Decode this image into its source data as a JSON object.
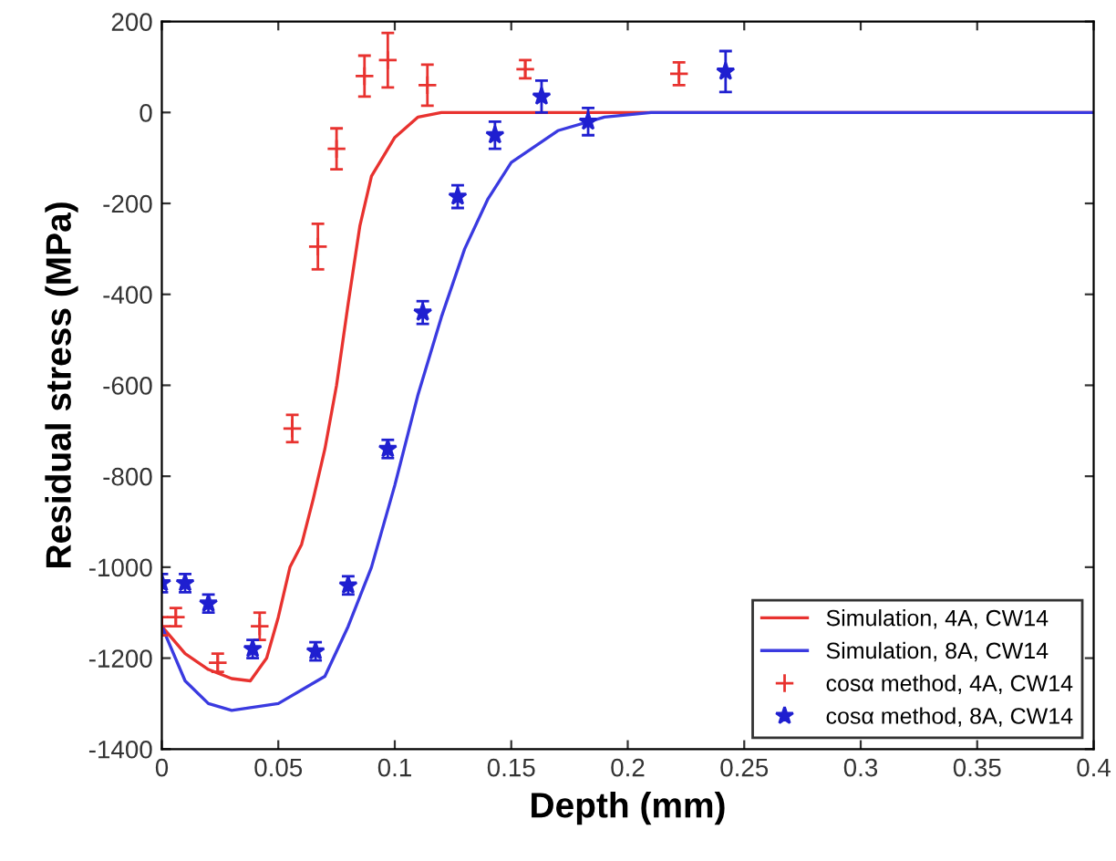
{
  "chart_data": {
    "type": "line",
    "xlabel": "Depth (mm)",
    "ylabel": "Residual stress (MPa)",
    "xlim": [
      0,
      0.4
    ],
    "xticks": [
      0,
      0.05,
      0.1,
      0.15,
      0.2,
      0.25,
      0.3,
      0.35,
      0.4
    ],
    "ylim": [
      -1400,
      200
    ],
    "yticks": [
      -1400,
      -1200,
      -1000,
      -800,
      -600,
      -400,
      -200,
      0,
      200
    ],
    "grid": false,
    "legend": "bottom right",
    "series": [
      {
        "name": "Simulation, 4A, CW14",
        "color": "#e8322f",
        "x": [
          0,
          0.01,
          0.02,
          0.03,
          0.038,
          0.045,
          0.05,
          0.055,
          0.06,
          0.065,
          0.07,
          0.075,
          0.08,
          0.085,
          0.09,
          0.1,
          0.11,
          0.12,
          0.4
        ],
        "values": [
          -1130,
          -1190,
          -1225,
          -1245,
          -1250,
          -1200,
          -1110,
          -1000,
          -950,
          -850,
          -740,
          -600,
          -420,
          -250,
          -140,
          -55,
          -10,
          0,
          0
        ]
      },
      {
        "name": "Simulation, 8A, CW14",
        "color": "#3a3ae0",
        "x": [
          0,
          0.01,
          0.02,
          0.03,
          0.05,
          0.07,
          0.08,
          0.09,
          0.1,
          0.11,
          0.12,
          0.13,
          0.14,
          0.15,
          0.17,
          0.19,
          0.21,
          0.4
        ],
        "values": [
          -1130,
          -1250,
          -1300,
          -1315,
          -1300,
          -1240,
          -1130,
          -1000,
          -820,
          -620,
          -450,
          -300,
          -190,
          -110,
          -40,
          -10,
          0,
          0
        ]
      },
      {
        "name": "cosα method, 4A, CW14",
        "type": "scatter",
        "marker": "cross",
        "color": "#e8322f",
        "x": [
          0,
          0.006,
          0.024,
          0.042,
          0.056,
          0.067,
          0.075,
          0.087,
          0.097,
          0.114,
          0.156,
          0.222
        ],
        "values": [
          -1130,
          -1110,
          -1210,
          -1130,
          -695,
          -295,
          -80,
          80,
          115,
          60,
          95,
          85
        ],
        "errors": [
          20,
          20,
          20,
          30,
          30,
          50,
          45,
          45,
          60,
          45,
          20,
          25
        ]
      },
      {
        "name": "cosα method, 8A, CW14",
        "type": "scatter",
        "marker": "star",
        "color": "#1f1fd0",
        "x": [
          0,
          0.01,
          0.02,
          0.039,
          0.066,
          0.08,
          0.097,
          0.112,
          0.127,
          0.143,
          0.163,
          0.183,
          0.242
        ],
        "values": [
          -1035,
          -1035,
          -1080,
          -1180,
          -1185,
          -1040,
          -740,
          -440,
          -185,
          -50,
          35,
          -20,
          90
        ],
        "errors": [
          20,
          20,
          20,
          20,
          20,
          20,
          20,
          25,
          25,
          30,
          35,
          30,
          45
        ]
      }
    ]
  }
}
